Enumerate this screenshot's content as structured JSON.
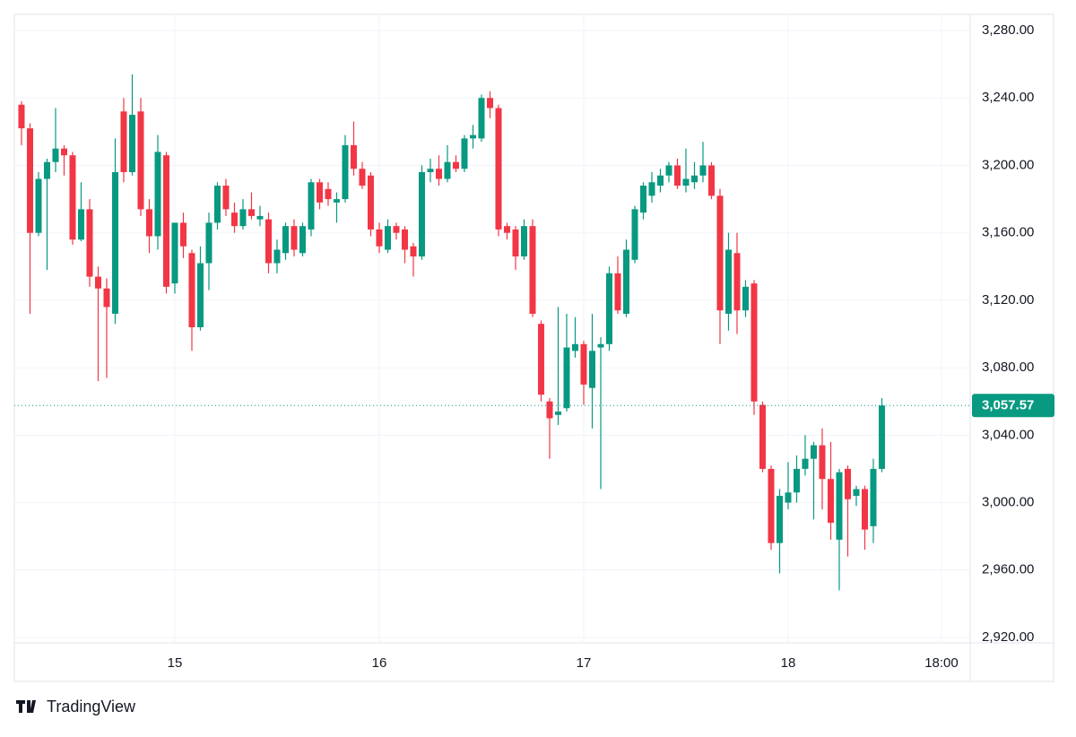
{
  "chart_data": {
    "type": "candlestick",
    "x": [
      -18,
      -17,
      -16,
      -15,
      -14,
      -13,
      -12,
      -11,
      -10,
      -9,
      -8,
      -7,
      -6,
      -5,
      -4,
      -3,
      -2,
      -1,
      0,
      1,
      2,
      3,
      4,
      5,
      6,
      7,
      8,
      9,
      10,
      11,
      12,
      13,
      14,
      15,
      16,
      17,
      18,
      19,
      20,
      21,
      22,
      23,
      24,
      25,
      26,
      27,
      28,
      29,
      30,
      31,
      32,
      33,
      34,
      35,
      36,
      37,
      38,
      39,
      40,
      41,
      42,
      43,
      44,
      45,
      46,
      47,
      48,
      49,
      50,
      51,
      52,
      53,
      54,
      55,
      56,
      57,
      58,
      59,
      60,
      61,
      62,
      63,
      64,
      65,
      66,
      67,
      68,
      69,
      70,
      71,
      72,
      73,
      74,
      75,
      76,
      77,
      78,
      79,
      80,
      81,
      82,
      83
    ],
    "open": [
      3236,
      3222,
      3160,
      3192,
      3202,
      3210,
      3206,
      3156,
      3174,
      3134,
      3127,
      3112,
      3232,
      3196,
      3232,
      3174,
      3158,
      3206,
      3130,
      3166,
      3148,
      3104,
      3142,
      3166,
      3188,
      3172,
      3164,
      3174,
      3168,
      3168,
      3142,
      3148,
      3164,
      3148,
      3162,
      3190,
      3186,
      3178,
      3180,
      3212,
      3198,
      3194,
      3162,
      3150,
      3164,
      3162,
      3152,
      3146,
      3196,
      3198,
      3192,
      3202,
      3198,
      3216,
      3216,
      3240,
      3234,
      3164,
      3162,
      3146,
      3164,
      3106,
      3060,
      3052,
      3056,
      3090,
      3094,
      3068,
      3092,
      3094,
      3136,
      3112,
      3144,
      3172,
      3182,
      3188,
      3194,
      3200,
      3188,
      3190,
      3194,
      3200,
      3182,
      3112,
      3148,
      3114,
      3130,
      3058,
      3020,
      2976,
      3000,
      3006,
      3020,
      3026,
      3034,
      3014,
      2978,
      3020,
      3004,
      3008,
      2986,
      3020
    ],
    "high": [
      3238,
      3225,
      3196,
      3204,
      3234,
      3212,
      3208,
      3190,
      3180,
      3140,
      3133,
      3216,
      3240,
      3254,
      3240,
      3180,
      3218,
      3208,
      3166,
      3172,
      3150,
      3152,
      3172,
      3190,
      3192,
      3178,
      3180,
      3184,
      3176,
      3172,
      3156,
      3166,
      3168,
      3166,
      3192,
      3192,
      3190,
      3184,
      3218,
      3226,
      3202,
      3196,
      3166,
      3168,
      3166,
      3164,
      3154,
      3200,
      3204,
      3206,
      3212,
      3206,
      3218,
      3224,
      3242,
      3244,
      3236,
      3166,
      3164,
      3168,
      3168,
      3108,
      3062,
      3116,
      3112,
      3110,
      3096,
      3112,
      3098,
      3140,
      3146,
      3156,
      3176,
      3190,
      3196,
      3198,
      3202,
      3204,
      3210,
      3202,
      3214,
      3202,
      3186,
      3160,
      3160,
      3132,
      3132,
      3060,
      3022,
      3008,
      3024,
      3028,
      3040,
      3036,
      3044,
      3036,
      3020,
      3022,
      3010,
      3010,
      3026,
      3062
    ],
    "low": [
      3212,
      3112,
      3158,
      3138,
      3196,
      3194,
      3153,
      3155,
      3128,
      3072,
      3074,
      3106,
      3190,
      3194,
      3170,
      3148,
      3150,
      3124,
      3124,
      3145,
      3090,
      3102,
      3126,
      3162,
      3170,
      3160,
      3162,
      3168,
      3164,
      3136,
      3136,
      3144,
      3146,
      3146,
      3158,
      3174,
      3176,
      3166,
      3178,
      3194,
      3186,
      3158,
      3148,
      3148,
      3156,
      3142,
      3134,
      3144,
      3190,
      3188,
      3190,
      3196,
      3196,
      3210,
      3214,
      3228,
      3158,
      3156,
      3138,
      3144,
      3110,
      3060,
      3026,
      3046,
      3054,
      3086,
      3058,
      3044,
      3008,
      3090,
      3112,
      3110,
      3142,
      3168,
      3178,
      3184,
      3190,
      3186,
      3184,
      3186,
      3190,
      3180,
      3094,
      3102,
      3100,
      3110,
      3052,
      3018,
      2972,
      2958,
      2996,
      3000,
      3016,
      2990,
      2996,
      2978,
      2948,
      2968,
      2998,
      2972,
      2976,
      3018
    ],
    "close": [
      3222,
      3160,
      3192,
      3202,
      3210,
      3206,
      3156,
      3174,
      3134,
      3127,
      3116,
      3196,
      3196,
      3230,
      3174,
      3158,
      3208,
      3128,
      3166,
      3152,
      3104,
      3142,
      3166,
      3188,
      3174,
      3164,
      3174,
      3170,
      3170,
      3142,
      3150,
      3164,
      3150,
      3164,
      3190,
      3178,
      3180,
      3180,
      3212,
      3198,
      3188,
      3162,
      3152,
      3164,
      3160,
      3150,
      3146,
      3196,
      3198,
      3192,
      3202,
      3198,
      3216,
      3218,
      3240,
      3234,
      3162,
      3160,
      3146,
      3164,
      3112,
      3064,
      3050,
      3054,
      3092,
      3094,
      3070,
      3090,
      3094,
      3136,
      3114,
      3150,
      3174,
      3188,
      3190,
      3194,
      3200,
      3188,
      3192,
      3194,
      3200,
      3182,
      3114,
      3150,
      3114,
      3128,
      3060,
      3020,
      2976,
      3004,
      3006,
      3020,
      3026,
      3034,
      3014,
      2988,
      3018,
      3002,
      3008,
      2984,
      3020,
      3057.57
    ],
    "up_color": "#089981",
    "down_color": "#f23645",
    "xlim": [
      -18.84,
      93.37
    ],
    "xticks": [
      {
        "value": 0,
        "label": "15"
      },
      {
        "value": 24,
        "label": "16"
      },
      {
        "value": 48,
        "label": "17"
      },
      {
        "value": 72,
        "label": "18"
      },
      {
        "value": 90,
        "label": "18:00"
      }
    ],
    "ylim": [
      2916.8,
      3289.6
    ],
    "yticks": [
      {
        "value": 2920,
        "label": "2,920.00"
      },
      {
        "value": 2960,
        "label": "2,960.00"
      },
      {
        "value": 3000,
        "label": "3,000.00"
      },
      {
        "value": 3040,
        "label": "3,040.00"
      },
      {
        "value": 3080,
        "label": "3,080.00"
      },
      {
        "value": 3120,
        "label": "3,120.00"
      },
      {
        "value": 3160,
        "label": "3,160.00"
      },
      {
        "value": 3200,
        "label": "3,200.00"
      },
      {
        "value": 3240,
        "label": "3,240.00"
      },
      {
        "value": 3280,
        "label": "3,280.00"
      }
    ],
    "last_price": {
      "value": 3057.57,
      "label": "3,057.57"
    },
    "grid": true
  },
  "brand": "TradingView"
}
